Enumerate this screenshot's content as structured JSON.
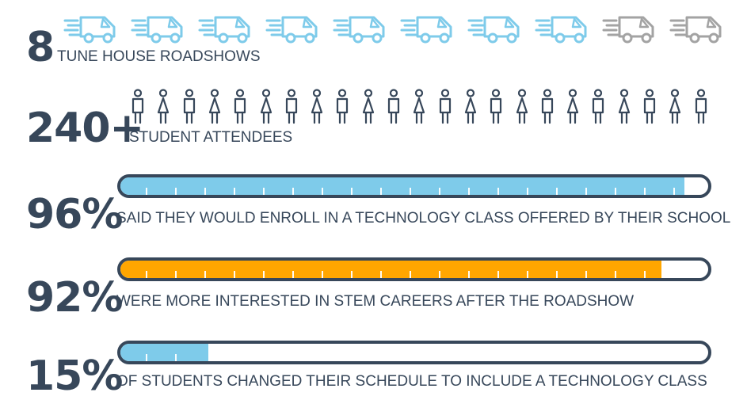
{
  "colors": {
    "dark": "#37475a",
    "blue": "#7ecbea",
    "orange": "#ffa600",
    "gray": "#a3a3a3"
  },
  "roadshows": {
    "number": "8",
    "caption": "TUNE HOUSE ROADSHOWS",
    "total_icons": 10,
    "highlighted_icons": 8,
    "icon": "van-icon"
  },
  "attendees": {
    "number": "240+",
    "caption": "STUDENT ATTENDEES",
    "icon_count": 23,
    "icon": "person-icon"
  },
  "stats": [
    {
      "number": "96%",
      "caption": "SAID THEY WOULD ENROLL IN A TECHNOLOGY CLASS OFFERED BY THEIR SCHOOL",
      "percent": 96,
      "color": "#7ecbea"
    },
    {
      "number": "92%",
      "caption": "WERE MORE INTERESTED IN STEM CAREERS AFTER THE ROADSHOW",
      "percent": 92,
      "color": "#ffa600"
    },
    {
      "number": "15%",
      "caption": "OF STUDENTS CHANGED THEIR SCHEDULE TO INCLUDE A TECHNOLOGY CLASS",
      "percent": 15,
      "color": "#7ecbea"
    }
  ]
}
